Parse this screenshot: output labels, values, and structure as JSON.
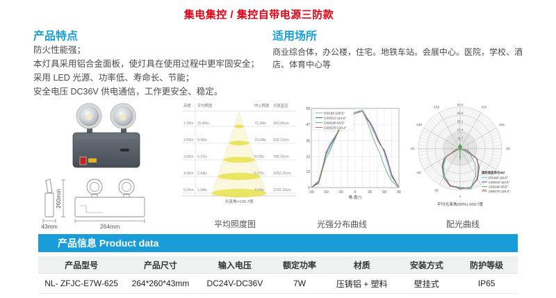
{
  "title": "集电集控 / 集控自带电源三防款",
  "features": {
    "heading": "产品特点",
    "lines": [
      "防火性能强；",
      "本灯具采用铝合金面板，使灯具在使用过程中更牢固安全；",
      "采用 LED 光源、功率低、寿命长、节能；",
      "安全电压 DC36V 供电通信，工作更安全、稳定。"
    ]
  },
  "applications": {
    "heading": "适用场所",
    "text": "商业综合体，办公楼，住宅。地铁车站。会展中心。医院，学校、酒店、体育中心等"
  },
  "dimensions": {
    "height": "260mm",
    "width": "264mm",
    "depth": "43mm"
  },
  "chart_data": [
    {
      "type": "table",
      "title": "平均照度图",
      "columns": [
        "高度",
        "平均照度",
        "中心照度",
        "光斑直径"
      ],
      "heights": [
        "1.00m",
        "2.00m",
        "3.00m",
        "4.00m",
        "5.00m"
      ],
      "avg_lux": [
        "25.86lx",
        "9.96lx",
        "5.21lx",
        "2.84lx",
        "1.58lx"
      ],
      "center_lux": [
        "72.36lx",
        "20.09lx",
        "8.03lx",
        "5.27lx",
        "3.04lx"
      ],
      "spot_diameter": [
        "263.06cm",
        "526.13cm",
        "789.19cm",
        "1052.25cm",
        "1315.32cm"
      ],
      "note": "光束角=109.7度"
    },
    {
      "type": "line",
      "title": "光强分布曲线",
      "xlabel": "角 度(°)",
      "x": [
        -90,
        -75,
        -60,
        -45,
        -30,
        -15,
        0,
        15,
        30,
        45,
        60,
        75,
        90
      ],
      "xticks": [
        -90,
        -60,
        -30,
        0,
        30,
        60,
        90
      ],
      "yticks": [
        0,
        12,
        23,
        35,
        47,
        59
      ],
      "ylim": [
        0,
        59
      ],
      "series": [
        {
          "name": "C0/180 109.5°",
          "color": "#5bc8e8",
          "values": [
            0,
            3,
            24,
            34,
            45,
            54,
            56,
            58,
            48,
            37,
            26,
            8,
            0
          ]
        },
        {
          "name": "C30/210 114.6°",
          "color": "#4a5bb5",
          "values": [
            0,
            4,
            25,
            35,
            46,
            55,
            55,
            57,
            49,
            38,
            27,
            9,
            0
          ]
        },
        {
          "name": "C60/240 93.5°",
          "color": "#5cb85c",
          "values": [
            0,
            3,
            22,
            33,
            44,
            53,
            55,
            57,
            44,
            30,
            16,
            5,
            0
          ]
        },
        {
          "name": "C90/270 120.4°",
          "color": "#c9605e",
          "values": [
            0,
            5,
            26,
            36,
            46,
            54,
            56,
            57,
            48,
            36,
            28,
            10,
            0
          ]
        }
      ]
    },
    {
      "type": "polar",
      "title": "配光曲线",
      "unit_label": "辐射强度单位:cd",
      "radial_ticks": [
        "0.0",
        "11.7",
        "23.4",
        "35.1",
        "46.8",
        "58.5"
      ],
      "rmax": 58.5,
      "angle_ticks": [
        -150,
        -120,
        -90,
        -60,
        -30,
        0,
        30,
        60,
        90,
        120,
        150
      ],
      "note": "平均光束角(50%):109.7度",
      "x": [
        -90,
        -75,
        -60,
        -45,
        -30,
        -15,
        0,
        15,
        30,
        45,
        60,
        75,
        90
      ],
      "series": [
        {
          "name": "C0/180 109.5°",
          "color": "#5bc8e8",
          "values": [
            0,
            3,
            24,
            34,
            45,
            54,
            56,
            58,
            48,
            37,
            26,
            8,
            0
          ]
        },
        {
          "name": "C30/210 114.6°",
          "color": "#4a5bb5",
          "values": [
            0,
            4,
            25,
            35,
            46,
            55,
            55,
            57,
            49,
            38,
            27,
            9,
            0
          ]
        },
        {
          "name": "C60/240 93.5°",
          "color": "#5cb85c",
          "values": [
            0,
            3,
            22,
            33,
            44,
            53,
            55,
            57,
            44,
            30,
            16,
            5,
            0
          ]
        },
        {
          "name": "C90/270 120.4°",
          "color": "#c9605e",
          "values": [
            0,
            5,
            26,
            36,
            46,
            54,
            56,
            57,
            48,
            36,
            28,
            10,
            0
          ]
        }
      ]
    }
  ],
  "product_info": {
    "banner": "产品信息 Product data",
    "columns": [
      "产品型号",
      "产品尺寸",
      "输入电压",
      "额定功率",
      "材质",
      "安装方式",
      "防护等级"
    ],
    "rows": [
      [
        "NL- ZFJC-E7W-625",
        "264*260*43mm",
        "DC24V-DC36V",
        "7W",
        "压铸铝 + 塑料",
        "壁挂式",
        "IP65"
      ]
    ]
  },
  "colors": {
    "accent_red": "#e60012",
    "accent_blue": "#179fdb",
    "banner_blue": "#189dd9",
    "table_header_bg": "#eff1f1"
  }
}
